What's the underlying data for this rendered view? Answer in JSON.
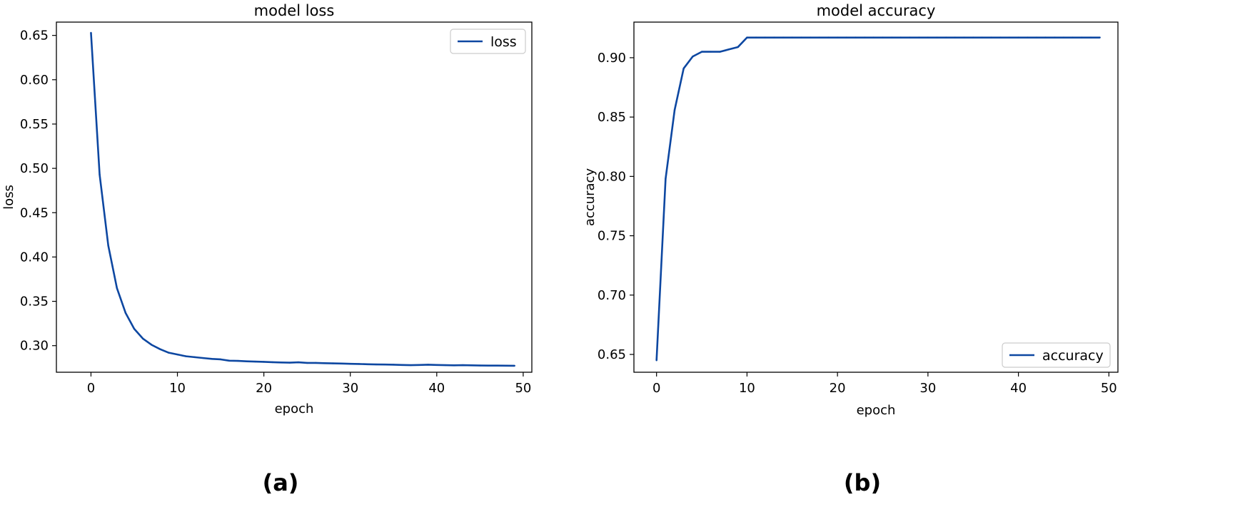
{
  "chart_data": [
    {
      "type": "line",
      "title": "model loss",
      "xlabel": "epoch",
      "ylabel": "loss",
      "panel_label": "(a)",
      "legend_position": "top-right",
      "xlim": [
        -4,
        51
      ],
      "ylim": [
        0.27,
        0.665
      ],
      "xticks": [
        0,
        10,
        20,
        30,
        40,
        50
      ],
      "yticks": [
        0.3,
        0.35,
        0.4,
        0.45,
        0.5,
        0.55,
        0.6,
        0.65
      ],
      "ytick_labels": [
        "0.30",
        "0.35",
        "0.40",
        "0.45",
        "0.50",
        "0.55",
        "0.60",
        "0.65"
      ],
      "line_color": "#0d47a1",
      "series": [
        {
          "name": "loss",
          "x": [
            0,
            1,
            2,
            3,
            4,
            5,
            6,
            7,
            8,
            9,
            10,
            11,
            12,
            13,
            14,
            15,
            16,
            17,
            18,
            19,
            20,
            21,
            22,
            23,
            24,
            25,
            26,
            27,
            28,
            29,
            30,
            31,
            32,
            33,
            34,
            35,
            36,
            37,
            38,
            39,
            40,
            41,
            42,
            43,
            44,
            45,
            46,
            47,
            48,
            49
          ],
          "values": [
            0.653,
            0.493,
            0.413,
            0.365,
            0.337,
            0.319,
            0.308,
            0.301,
            0.296,
            0.292,
            0.29,
            0.288,
            0.287,
            0.286,
            0.285,
            0.2845,
            0.283,
            0.2828,
            0.2823,
            0.282,
            0.2817,
            0.2813,
            0.281,
            0.2808,
            0.2812,
            0.2805,
            0.2805,
            0.2802,
            0.28,
            0.2798,
            0.2795,
            0.2793,
            0.279,
            0.2788,
            0.2787,
            0.2785,
            0.2782,
            0.278,
            0.2782,
            0.2785,
            0.2782,
            0.278,
            0.2778,
            0.278,
            0.2778,
            0.2776,
            0.2775,
            0.2775,
            0.2774,
            0.2773
          ]
        }
      ]
    },
    {
      "type": "line",
      "title": "model accuracy",
      "xlabel": "epoch",
      "ylabel": "accuracy",
      "panel_label": "(b)",
      "legend_position": "bottom-right",
      "xlim": [
        -2.5,
        51
      ],
      "ylim": [
        0.635,
        0.93
      ],
      "xticks": [
        0,
        10,
        20,
        30,
        40,
        50
      ],
      "yticks": [
        0.65,
        0.7,
        0.75,
        0.8,
        0.85,
        0.9
      ],
      "ytick_labels": [
        "0.65",
        "0.70",
        "0.75",
        "0.80",
        "0.85",
        "0.90"
      ],
      "line_color": "#0d47a1",
      "series": [
        {
          "name": "accuracy",
          "x": [
            0,
            1,
            2,
            3,
            4,
            5,
            6,
            7,
            8,
            9,
            10,
            11,
            12,
            13,
            14,
            15,
            16,
            17,
            18,
            19,
            20,
            21,
            22,
            23,
            24,
            25,
            26,
            27,
            28,
            29,
            30,
            31,
            32,
            33,
            34,
            35,
            36,
            37,
            38,
            39,
            40,
            41,
            42,
            43,
            44,
            45,
            46,
            47,
            48,
            49
          ],
          "values": [
            0.645,
            0.798,
            0.856,
            0.891,
            0.901,
            0.905,
            0.905,
            0.905,
            0.907,
            0.909,
            0.917,
            0.917,
            0.917,
            0.917,
            0.917,
            0.917,
            0.917,
            0.917,
            0.917,
            0.917,
            0.917,
            0.917,
            0.917,
            0.917,
            0.917,
            0.917,
            0.917,
            0.917,
            0.917,
            0.917,
            0.917,
            0.917,
            0.917,
            0.917,
            0.917,
            0.917,
            0.917,
            0.917,
            0.917,
            0.917,
            0.917,
            0.917,
            0.917,
            0.917,
            0.917,
            0.917,
            0.917,
            0.917,
            0.917,
            0.917
          ]
        }
      ]
    }
  ]
}
